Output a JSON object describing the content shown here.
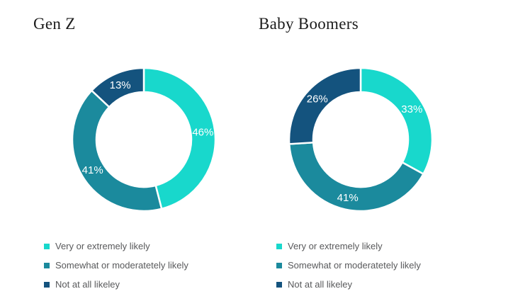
{
  "page": {
    "background_color": "#ffffff",
    "slice_label_color": "#ffffff",
    "legend_text_color": "#58595b",
    "title_color": "#1c1c1c"
  },
  "chart_data": [
    {
      "type": "pie",
      "variant": "donut",
      "title": "Gen Z",
      "labels": [
        "Very or extremely likely",
        "Somewhat or moderatetely likely",
        "Not at all likeley"
      ],
      "values": [
        46,
        41,
        13
      ],
      "data_labels": [
        "46%",
        "41%",
        "13%"
      ],
      "colors": [
        "#18d8cc",
        "#1b8a9d",
        "#14537e"
      ],
      "start_angle_deg": 0,
      "direction": "clockwise",
      "donut_outer_radius": 101,
      "donut_inner_radius": 67,
      "legend_position": "bottom"
    },
    {
      "type": "pie",
      "variant": "donut",
      "title": "Baby Boomers",
      "labels": [
        "Very or extremely likely",
        "Somewhat or moderatetely likely",
        "Not at all likeley"
      ],
      "values": [
        33,
        41,
        26
      ],
      "data_labels": [
        "33%",
        "41%",
        "26%"
      ],
      "colors": [
        "#18d8cc",
        "#1b8a9d",
        "#14537e"
      ],
      "start_angle_deg": 0,
      "direction": "clockwise",
      "donut_outer_radius": 101,
      "donut_inner_radius": 67,
      "legend_position": "bottom"
    }
  ]
}
